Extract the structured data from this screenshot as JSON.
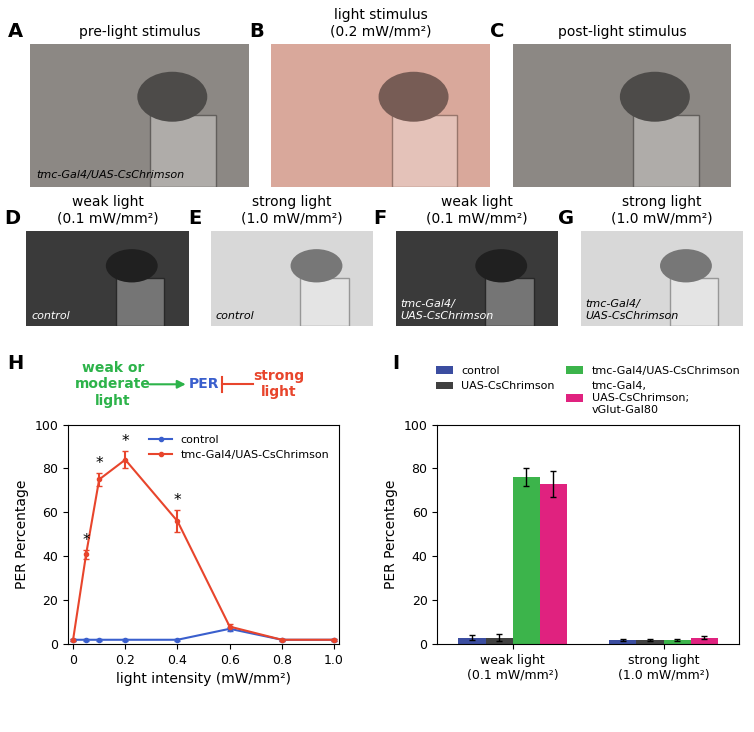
{
  "photo_panels": [
    {
      "letter": "A",
      "title": "pre-light stimulus",
      "inscription": "tmc-Gal4/UAS-CsChrimson",
      "color": "#8c8884"
    },
    {
      "letter": "B",
      "title": "light stimulus\n(0.2 mW/mm²)",
      "color": "#d9a89b"
    },
    {
      "letter": "C",
      "title": "post-light stimulus",
      "color": "#8c8884"
    },
    {
      "letter": "D",
      "title": "weak light\n(0.1 mW/mm²)",
      "inscription": "control",
      "color": "#3a3a3a"
    },
    {
      "letter": "E",
      "title": "strong light\n(1.0 mW/mm²)",
      "inscription": "control",
      "color": "#d8d8d8"
    },
    {
      "letter": "F",
      "title": "weak light\n(0.1 mW/mm²)",
      "inscription": "tmc-Gal4/\nUAS-CsChrimson",
      "color": "#3a3a3a"
    },
    {
      "letter": "G",
      "title": "strong light\n(1.0 mW/mm²)",
      "inscription": "tmc-Gal4/\nUAS-CsChrimson",
      "color": "#d8d8d8"
    }
  ],
  "chart_data": [
    {
      "letter": "H",
      "type": "line",
      "x_label": "light intensity (mW/mm²)",
      "y_label": "PER Percentage",
      "xlim": [
        -0.02,
        1.02
      ],
      "ylim": [
        0,
        100
      ],
      "xticks": [
        0,
        0.2,
        0.4,
        0.6,
        0.8,
        1.0
      ],
      "yticks": [
        0,
        20,
        40,
        60,
        80,
        100
      ],
      "legend": "upper right",
      "diagram": {
        "activator": {
          "text": "weak or\nmoderate\nlight",
          "color": "#2db34a"
        },
        "target": {
          "text": "PER",
          "color": "#3a5fcd"
        },
        "inhibitor": {
          "text": "strong\nlight",
          "color": "#e8452c"
        }
      },
      "x": [
        0,
        0.05,
        0.1,
        0.2,
        0.4,
        0.6,
        0.8,
        1.0
      ],
      "series": [
        {
          "name": "control",
          "color": "#3a5fcd",
          "marker": "o",
          "values": [
            2,
            2,
            2,
            2,
            2,
            7,
            2,
            2
          ],
          "errors": [
            0.5,
            0.5,
            0.5,
            0.5,
            0.5,
            1,
            0.5,
            0.5
          ]
        },
        {
          "name": "tmc-Gal4/UAS-CsChrimson",
          "color": "#e8452c",
          "marker": "o",
          "values": [
            2,
            41,
            75,
            84,
            56,
            8,
            2,
            2
          ],
          "errors": [
            0.5,
            2,
            3,
            4,
            5,
            1,
            0.5,
            0.5
          ],
          "significance": [
            null,
            "*",
            "*",
            "*",
            "*",
            null,
            null,
            null
          ]
        }
      ]
    },
    {
      "letter": "I",
      "type": "bar",
      "y_label": "PER Percentage",
      "categories": [
        "weak light\n(0.1 mW/mm²)",
        "strong light\n(1.0 mW/mm²)"
      ],
      "ylim": [
        0,
        100
      ],
      "yticks": [
        0,
        20,
        40,
        60,
        80,
        100
      ],
      "legend": "lower center",
      "series": [
        {
          "name": "control",
          "color": "#3b4da0",
          "values": [
            3,
            2
          ],
          "errors": [
            1,
            0.5
          ]
        },
        {
          "name": "UAS-CsChrimson",
          "color": "#404040",
          "values": [
            3,
            2
          ],
          "errors": [
            1.5,
            0.5
          ]
        },
        {
          "name": "tmc-Gal4/UAS-CsChrimson",
          "color": "#3cb44b",
          "values": [
            76,
            2
          ],
          "errors": [
            4,
            0.5
          ]
        },
        {
          "name": "tmc-Gal4,\nUAS-CsChrimson;\nvGlut-Gal80",
          "color": "#e0227f",
          "values": [
            73,
            3
          ],
          "errors": [
            6,
            0.7
          ]
        }
      ]
    }
  ]
}
